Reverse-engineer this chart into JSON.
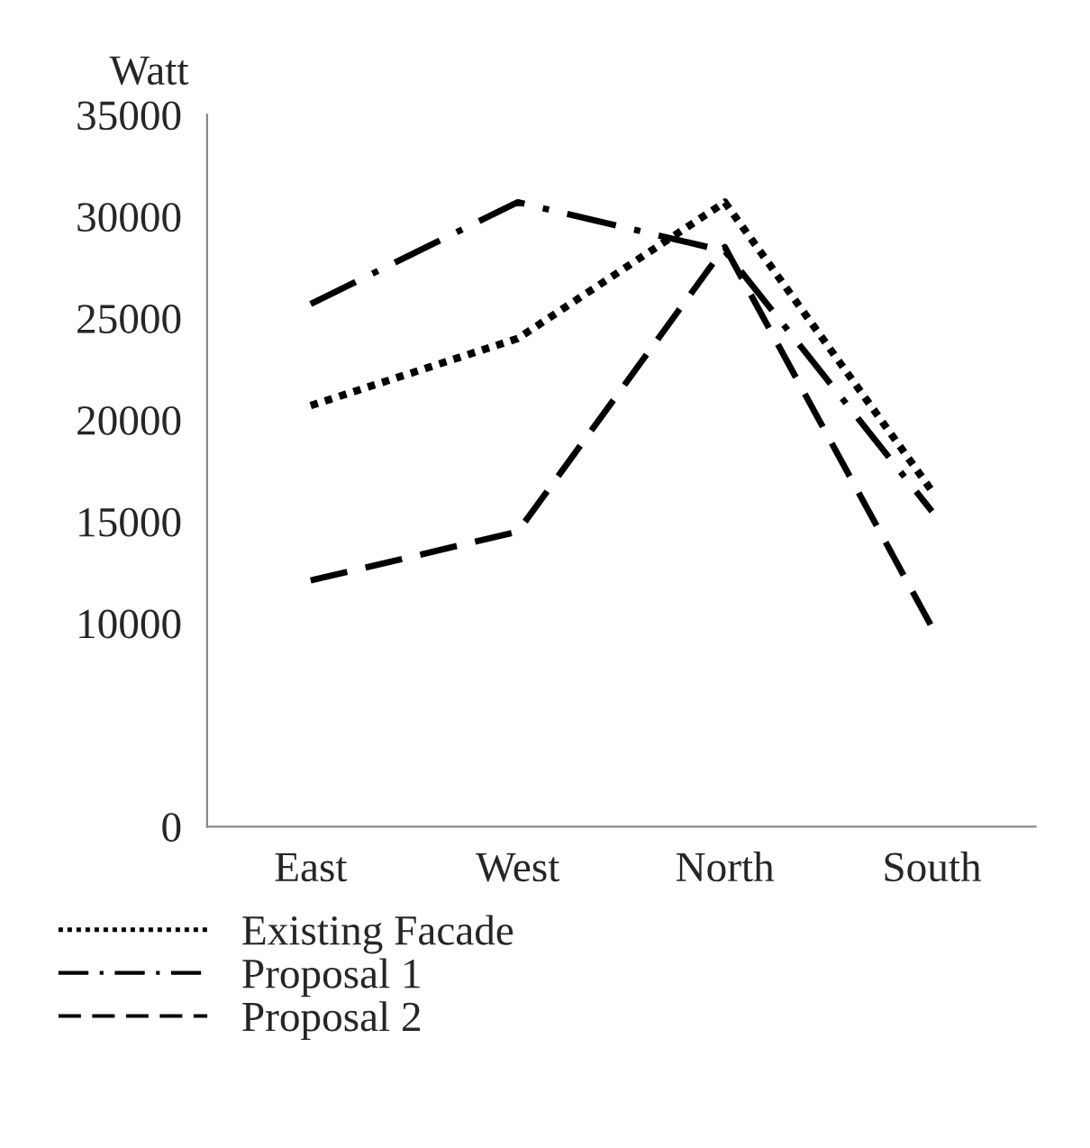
{
  "chart_data": {
    "type": "line",
    "ylabel": "Watt",
    "categories": [
      "East",
      "West",
      "North",
      "South"
    ],
    "series": [
      {
        "name": "Existing Facade",
        "color": "#000000",
        "line_style": "dotted",
        "values": [
          20700,
          24000,
          30700,
          16500
        ]
      },
      {
        "name": "Proposal 1",
        "color": "#000000",
        "line_style": "dashdot",
        "values": [
          25700,
          30700,
          28300,
          15500
        ]
      },
      {
        "name": "Proposal 2",
        "color": "#000000",
        "line_style": "dashed",
        "values": [
          12100,
          14500,
          28500,
          9800
        ]
      }
    ],
    "ylim": [
      0,
      35000
    ],
    "yticks": [
      0,
      10000,
      15000,
      20000,
      25000,
      30000,
      35000
    ],
    "legend": "bottom"
  }
}
